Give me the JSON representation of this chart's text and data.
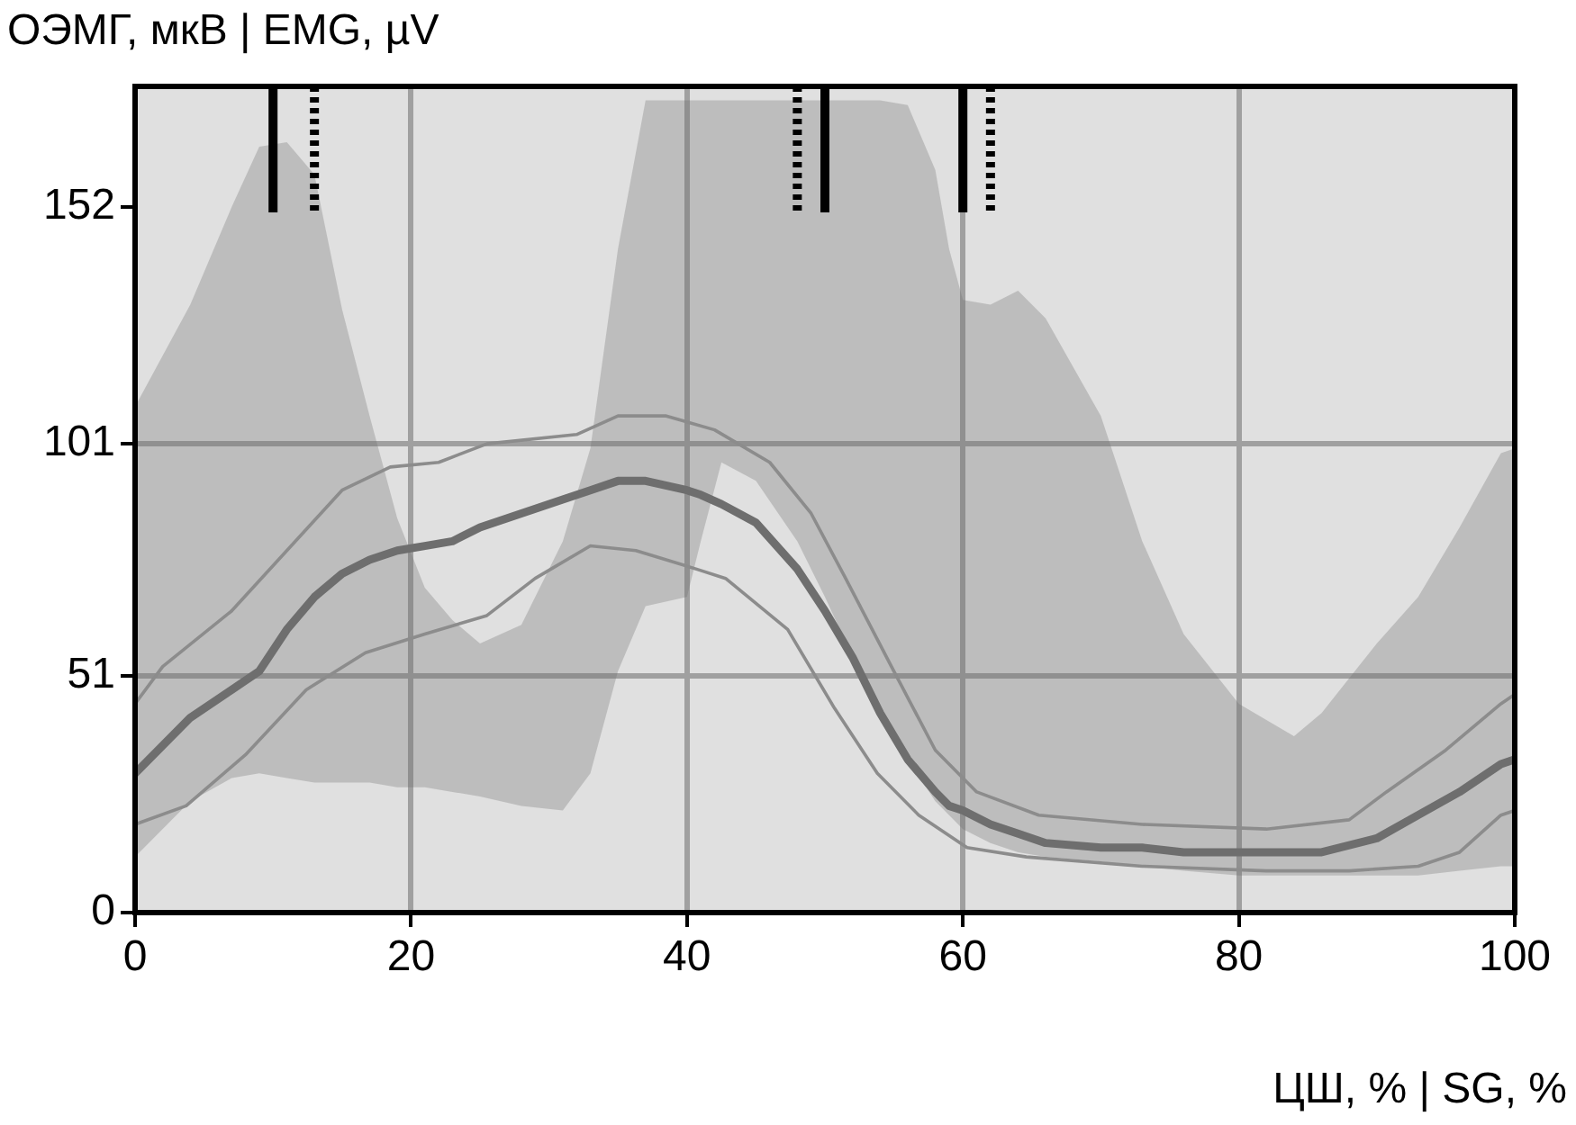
{
  "chart_data": {
    "type": "line",
    "xlabel": "ЦШ, % | SG, %",
    "ylabel": "ОЭМГ, мкВ | EMG, µV",
    "xlim": [
      0,
      100
    ],
    "xticks": [
      0,
      20,
      40,
      60,
      80,
      100
    ],
    "ylim": [
      0,
      178
    ],
    "yticks": [
      0,
      51,
      101,
      152
    ],
    "grid": true,
    "legend": false,
    "marker": "none",
    "line_style": "solid",
    "series": [
      {
        "color": "#6e6e6e",
        "x": [
          0,
          4,
          7,
          9,
          11,
          13,
          15,
          17,
          19,
          21,
          23,
          25,
          28,
          31,
          33,
          35,
          37,
          40,
          41,
          42.5,
          45,
          48,
          50,
          52,
          54,
          56,
          58,
          59,
          60,
          62,
          64,
          66,
          70,
          73,
          76,
          80,
          84,
          86,
          90,
          93,
          96,
          99,
          100
        ],
        "values": [
          30,
          42,
          48,
          52,
          61,
          68,
          73,
          76,
          78,
          79,
          80,
          83,
          86,
          89,
          91,
          93,
          93,
          91,
          90,
          88,
          84,
          74,
          65,
          55,
          43,
          33,
          26,
          23,
          22,
          19,
          17,
          15,
          14,
          14,
          13,
          13,
          13,
          13,
          16,
          21,
          26,
          32,
          33
        ],
        "lower": [
          12,
          24,
          29,
          30,
          29,
          28,
          28,
          28,
          27,
          27,
          26,
          25,
          23,
          22,
          30,
          52,
          66,
          68,
          80,
          97,
          93,
          80,
          68,
          55,
          44,
          33,
          24,
          21,
          18,
          15,
          13,
          12,
          11,
          10,
          9,
          8,
          8,
          8,
          8,
          8,
          9,
          10,
          10
        ],
        "upper": [
          109,
          131,
          152,
          165,
          166,
          159,
          130,
          107,
          85,
          70,
          63,
          58,
          62,
          80,
          100,
          143,
          175,
          175,
          175,
          175,
          175,
          175,
          175,
          175,
          175,
          174,
          160,
          143,
          132,
          131,
          134,
          128,
          107,
          80,
          60,
          45,
          38,
          43,
          58,
          68,
          83,
          99,
          100
        ]
      },
      {
        "color": "#8c8c8c",
        "x": [
          0,
          2,
          7,
          11,
          15,
          18.5,
          22,
          25.5,
          32,
          35,
          38.5,
          42,
          46,
          49,
          51.5,
          55,
          58,
          61,
          65.5,
          73,
          82,
          88,
          90.7,
          95,
          99,
          100
        ],
        "values": [
          45,
          53,
          65,
          78,
          91,
          96,
          97,
          101,
          103,
          107,
          107,
          104,
          97,
          86,
          72,
          52,
          35,
          26,
          21,
          19,
          18,
          20,
          26,
          35,
          45,
          47
        ]
      },
      {
        "color": "#8c8c8c",
        "x": [
          0,
          3.7,
          8,
          12.4,
          16.7,
          21,
          25.5,
          29,
          33,
          36.3,
          40.7,
          42.8,
          47.3,
          50.7,
          53.8,
          56.8,
          60.3,
          64.6,
          73,
          82,
          88,
          93,
          96,
          99,
          100
        ],
        "values": [
          19,
          23,
          34,
          48,
          56,
          60,
          64,
          72,
          79,
          78,
          74,
          72,
          61,
          44,
          30,
          21,
          14,
          12,
          10,
          9,
          9,
          10,
          13,
          21,
          22
        ]
      }
    ],
    "ref_lines": [
      {
        "axis": "x",
        "value": 10,
        "line_style": "solid",
        "color": "#000000"
      },
      {
        "axis": "x",
        "value": 13,
        "line_style": "dotted",
        "color": "#000000"
      },
      {
        "axis": "x",
        "value": 48,
        "line_style": "dotted",
        "color": "#000000"
      },
      {
        "axis": "x",
        "value": 50,
        "line_style": "solid",
        "color": "#000000"
      },
      {
        "axis": "x",
        "value": 60,
        "line_style": "solid",
        "color": "#000000"
      },
      {
        "axis": "x",
        "value": 62,
        "line_style": "dotted",
        "color": "#000000"
      }
    ]
  }
}
